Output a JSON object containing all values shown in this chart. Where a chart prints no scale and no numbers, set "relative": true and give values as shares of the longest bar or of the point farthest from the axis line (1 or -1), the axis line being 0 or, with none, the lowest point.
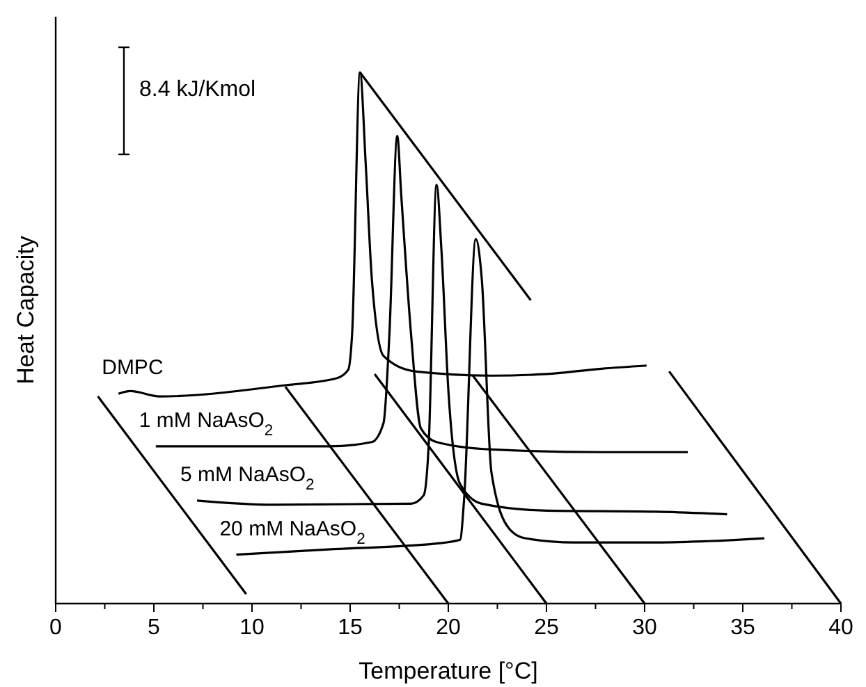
{
  "chart_data": {
    "type": "line",
    "relative": true,
    "xlabel": "Temperature [°C]",
    "ylabel": "Heat Capacity",
    "xlim": [
      0,
      40
    ],
    "xticks": [
      0,
      {
        "value": 2.5,
        "label": null
      },
      5,
      {
        "value": 7.5,
        "label": null
      },
      10,
      {
        "value": 12.5,
        "label": null
      },
      15,
      {
        "value": 17.5,
        "label": null
      },
      20,
      {
        "value": 22.5,
        "label": null
      },
      25,
      {
        "value": 27.5,
        "label": null
      },
      30,
      {
        "value": 32.5,
        "label": null
      },
      35,
      {
        "value": 37.5,
        "label": null
      },
      40
    ],
    "annotations": [
      "8.4 kJ/Kmol"
    ],
    "marker": "none",
    "line_style": "solid",
    "series": [
      {
        "name": "DMPC",
        "color": "#000000",
        "x": [
          3.2,
          3.8,
          5.3,
          11.7,
          14.3,
          14.9,
          15.1,
          15.5,
          15.8,
          16.1,
          16.7,
          18.3,
          22.2,
          25,
          27.8,
          30.1
        ],
        "values": [
          0.395,
          0.4,
          0.39,
          0.411,
          0.424,
          0.44,
          0.508,
          1.0,
          0.822,
          0.613,
          0.466,
          0.437,
          0.429,
          0.432,
          0.442,
          0.448
        ]
      },
      {
        "name": "1 mM NaAsO$_{2}$",
        "color": "#000000",
        "x": [
          5.1,
          13.9,
          16.1,
          16.7,
          17.0,
          17.4,
          17.6,
          18.1,
          18.6,
          19.4,
          22.2,
          27.8,
          32.2
        ],
        "values": [
          0.296,
          0.296,
          0.304,
          0.34,
          0.508,
          0.88,
          0.77,
          0.508,
          0.33,
          0.304,
          0.29,
          0.285,
          0.285
        ]
      },
      {
        "name": "5 mM NaAsO$_{2}$",
        "color": "#000000",
        "x": [
          7.2,
          11.1,
          18.1,
          18.75,
          19.0,
          19.4,
          19.65,
          20.0,
          20.6,
          21.7,
          25,
          30.6,
          34.2
        ],
        "values": [
          0.194,
          0.186,
          0.188,
          0.204,
          0.298,
          0.788,
          0.665,
          0.403,
          0.225,
          0.188,
          0.175,
          0.173,
          0.168
        ]
      },
      {
        "name": "20 mM NaAsO$_{2}$",
        "color": "#000000",
        "x": [
          9.2,
          13.9,
          19.4,
          20.6,
          20.8,
          21.4,
          21.7,
          22.2,
          23.1,
          23.9,
          26.4,
          30.6,
          36.1
        ],
        "values": [
          0.092,
          0.102,
          0.113,
          0.12,
          0.194,
          0.686,
          0.613,
          0.246,
          0.141,
          0.123,
          0.115,
          0.115,
          0.123
        ]
      },
      {
        "color": "#000000",
        "x": [
          2.15,
          9.7
        ],
        "values": [
          0.39,
          0.018
        ]
      },
      {
        "color": "#000000",
        "x": [
          11.7,
          20
        ],
        "values": [
          0.408,
          0
        ]
      },
      {
        "color": "#000000",
        "x": [
          16.25,
          25
        ],
        "values": [
          0.432,
          0
        ]
      },
      {
        "color": "#000000",
        "x": [
          21.25,
          30
        ],
        "values": [
          0.429,
          0
        ]
      },
      {
        "color": "#000000",
        "x": [
          31.25,
          40
        ],
        "values": [
          0.437,
          0
        ]
      },
      {
        "color": "#000000",
        "x": [
          15.5,
          24.2
        ],
        "values": [
          1.0,
          0.571
        ]
      }
    ]
  }
}
